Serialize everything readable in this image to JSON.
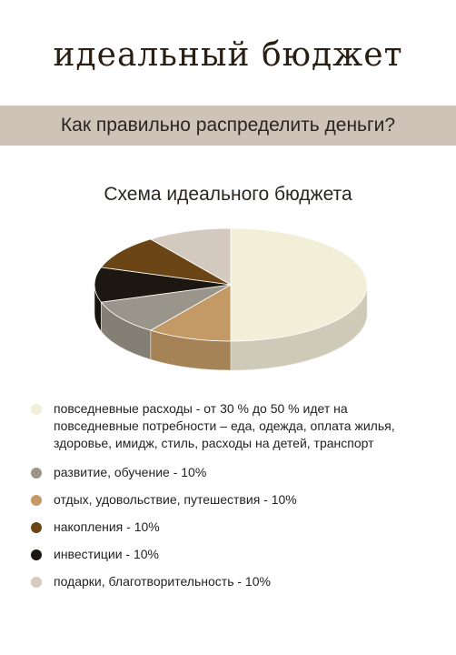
{
  "header": {
    "title": "идеальный бюджет",
    "subtitle": "Как правильно распределить деньги?"
  },
  "chart_data": {
    "type": "pie",
    "title": "Схема идеального бюджета",
    "slices": [
      {
        "label": "повседневные расходы - от 30 % до 50 % идет на повседневные потребности – еда, одежда, оплата жилья, здоровье, имидж, стиль,  расходы на детей, транспорт",
        "value": 50,
        "color": "#f1efd8"
      },
      {
        "label": "отдых, удовольствие, путешествия - 10%",
        "value": 10,
        "color": "#c39a66"
      },
      {
        "label": "развитие, обучение - 10%",
        "value": 10,
        "color": "#9a958a"
      },
      {
        "label": "инвестиции - 10%",
        "value": 10,
        "color": "#1c1710"
      },
      {
        "label": "накопления - 10%",
        "value": 10,
        "color": "#6b4515"
      },
      {
        "label": "подарки, благотворительность - 10%",
        "value": 10,
        "color": "#d4c9be"
      }
    ]
  },
  "legend": [
    {
      "text": "повседневные расходы - от 30 % до 50 % идет на повседневные потребности – еда, одежда, оплата жилья, здоровье, имидж, стиль,  расходы на детей, транспорт",
      "color": "#f1efd8"
    },
    {
      "text": "развитие, обучение - 10%",
      "color": "#9a958a"
    },
    {
      "text": "отдых, удовольствие, путешествия - 10%",
      "color": "#c39a66"
    },
    {
      "text": "накопления - 10%",
      "color": "#6b4515"
    },
    {
      "text": "инвестиции - 10%",
      "color": "#1c1710"
    },
    {
      "text": "подарки, благотворительность - 10%",
      "color": "#d4c9be"
    }
  ]
}
